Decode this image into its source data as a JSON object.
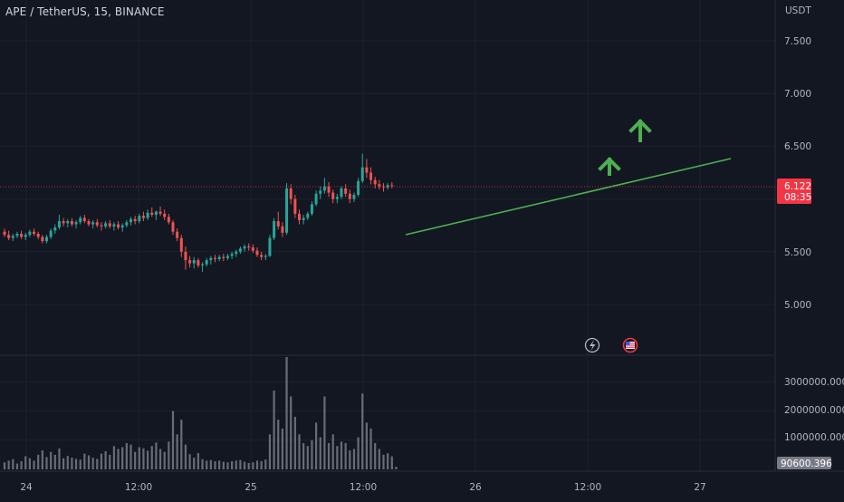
{
  "header": {
    "title": "APE / TetherUS, 15, BINANCE"
  },
  "price_axis": {
    "currency": "USDT",
    "ticks": [
      "7.500",
      "7.000",
      "6.500",
      "5.500",
      "5.000"
    ],
    "tick_values": [
      7.5,
      7.0,
      6.5,
      5.5,
      5.0
    ]
  },
  "last_price": {
    "value": "6.122",
    "countdown": "08:35",
    "color": "#f23645"
  },
  "volume_axis": {
    "ticks": [
      "3000000.000",
      "2000000.000",
      "1000000.000"
    ],
    "tick_values": [
      3000000,
      2000000,
      1000000
    ],
    "last_volume": "90600.396"
  },
  "time_axis": {
    "labels": [
      "24",
      "12:00",
      "25",
      "12:00",
      "26",
      "12:00",
      "27"
    ]
  },
  "colors": {
    "background": "#131722",
    "grid": "#1e222d",
    "up": "#26a69a",
    "down": "#ef5350",
    "trendline": "#4caf50",
    "arrow": "#4caf50",
    "volume_bar": "#787b86"
  },
  "icons": {
    "event_lightning": "lightning-icon",
    "event_flag": "us-flag-icon"
  },
  "chart_data": {
    "type": "candlestick",
    "series": [
      {
        "name": "APE / TetherUS",
        "values": [
          [
            5.69,
            5.72,
            5.64,
            5.66
          ],
          [
            5.66,
            5.7,
            5.61,
            5.63
          ],
          [
            5.63,
            5.67,
            5.6,
            5.65
          ],
          [
            5.65,
            5.69,
            5.63,
            5.67
          ],
          [
            5.67,
            5.7,
            5.62,
            5.64
          ],
          [
            5.64,
            5.68,
            5.61,
            5.66
          ],
          [
            5.66,
            5.71,
            5.64,
            5.69
          ],
          [
            5.69,
            5.72,
            5.65,
            5.67
          ],
          [
            5.67,
            5.69,
            5.62,
            5.64
          ],
          [
            5.64,
            5.66,
            5.58,
            5.6
          ],
          [
            5.6,
            5.66,
            5.58,
            5.64
          ],
          [
            5.64,
            5.72,
            5.62,
            5.7
          ],
          [
            5.7,
            5.76,
            5.67,
            5.73
          ],
          [
            5.73,
            5.85,
            5.71,
            5.79
          ],
          [
            5.79,
            5.82,
            5.74,
            5.77
          ],
          [
            5.77,
            5.81,
            5.73,
            5.79
          ],
          [
            5.79,
            5.82,
            5.74,
            5.76
          ],
          [
            5.76,
            5.8,
            5.72,
            5.78
          ],
          [
            5.78,
            5.84,
            5.76,
            5.82
          ],
          [
            5.82,
            5.85,
            5.77,
            5.79
          ],
          [
            5.79,
            5.81,
            5.74,
            5.76
          ],
          [
            5.76,
            5.8,
            5.72,
            5.78
          ],
          [
            5.78,
            5.81,
            5.73,
            5.75
          ],
          [
            5.75,
            5.78,
            5.7,
            5.74
          ],
          [
            5.74,
            5.79,
            5.72,
            5.77
          ],
          [
            5.77,
            5.8,
            5.72,
            5.74
          ],
          [
            5.74,
            5.78,
            5.7,
            5.76
          ],
          [
            5.76,
            5.79,
            5.71,
            5.73
          ],
          [
            5.73,
            5.77,
            5.69,
            5.75
          ],
          [
            5.75,
            5.8,
            5.73,
            5.78
          ],
          [
            5.78,
            5.83,
            5.75,
            5.81
          ],
          [
            5.81,
            5.84,
            5.76,
            5.79
          ],
          [
            5.79,
            5.86,
            5.77,
            5.84
          ],
          [
            5.84,
            5.88,
            5.79,
            5.82
          ],
          [
            5.82,
            5.9,
            5.8,
            5.87
          ],
          [
            5.87,
            5.92,
            5.83,
            5.85
          ],
          [
            5.85,
            5.89,
            5.8,
            5.88
          ],
          [
            5.88,
            5.93,
            5.84,
            5.86
          ],
          [
            5.86,
            5.9,
            5.8,
            5.83
          ],
          [
            5.83,
            5.86,
            5.76,
            5.78
          ],
          [
            5.78,
            5.8,
            5.66,
            5.69
          ],
          [
            5.69,
            5.72,
            5.6,
            5.63
          ],
          [
            5.63,
            5.66,
            5.45,
            5.5
          ],
          [
            5.5,
            5.55,
            5.33,
            5.42
          ],
          [
            5.42,
            5.46,
            5.35,
            5.39
          ],
          [
            5.39,
            5.45,
            5.34,
            5.42
          ],
          [
            5.42,
            5.44,
            5.35,
            5.37
          ],
          [
            5.37,
            5.4,
            5.31,
            5.38
          ],
          [
            5.38,
            5.44,
            5.36,
            5.42
          ],
          [
            5.42,
            5.46,
            5.38,
            5.44
          ],
          [
            5.44,
            5.47,
            5.4,
            5.43
          ],
          [
            5.43,
            5.47,
            5.41,
            5.45
          ],
          [
            5.45,
            5.48,
            5.41,
            5.44
          ],
          [
            5.44,
            5.48,
            5.42,
            5.46
          ],
          [
            5.46,
            5.5,
            5.43,
            5.48
          ],
          [
            5.48,
            5.52,
            5.45,
            5.5
          ],
          [
            5.5,
            5.55,
            5.48,
            5.53
          ],
          [
            5.53,
            5.57,
            5.5,
            5.55
          ],
          [
            5.55,
            5.58,
            5.51,
            5.54
          ],
          [
            5.54,
            5.57,
            5.49,
            5.51
          ],
          [
            5.51,
            5.54,
            5.45,
            5.47
          ],
          [
            5.47,
            5.5,
            5.42,
            5.45
          ],
          [
            5.45,
            5.48,
            5.42,
            5.46
          ],
          [
            5.46,
            5.66,
            5.45,
            5.63
          ],
          [
            5.63,
            5.82,
            5.61,
            5.79
          ],
          [
            5.79,
            5.88,
            5.71,
            5.74
          ],
          [
            5.74,
            5.78,
            5.64,
            5.68
          ],
          [
            5.68,
            6.15,
            5.66,
            6.1
          ],
          [
            6.1,
            6.14,
            5.95,
            6.0
          ],
          [
            6.0,
            6.04,
            5.82,
            5.86
          ],
          [
            5.86,
            5.9,
            5.76,
            5.8
          ],
          [
            5.8,
            5.85,
            5.76,
            5.82
          ],
          [
            5.82,
            5.88,
            5.8,
            5.86
          ],
          [
            5.86,
            5.98,
            5.84,
            5.95
          ],
          [
            5.95,
            6.08,
            5.93,
            6.05
          ],
          [
            6.05,
            6.12,
            6.0,
            6.08
          ],
          [
            6.08,
            6.2,
            6.05,
            6.12
          ],
          [
            6.12,
            6.16,
            6.02,
            6.06
          ],
          [
            6.06,
            6.09,
            5.96,
            6.0
          ],
          [
            6.0,
            6.05,
            5.96,
            6.02
          ],
          [
            6.02,
            6.12,
            6.0,
            6.1
          ],
          [
            6.1,
            6.14,
            6.02,
            6.05
          ],
          [
            6.05,
            6.09,
            5.96,
            6.0
          ],
          [
            6.0,
            6.06,
            5.97,
            6.04
          ],
          [
            6.04,
            6.2,
            6.02,
            6.17
          ],
          [
            6.17,
            6.43,
            6.15,
            6.3
          ],
          [
            6.3,
            6.38,
            6.2,
            6.25
          ],
          [
            6.25,
            6.3,
            6.14,
            6.18
          ],
          [
            6.18,
            6.21,
            6.1,
            6.14
          ],
          [
            6.14,
            6.18,
            6.09,
            6.12
          ],
          [
            6.12,
            6.15,
            6.07,
            6.11
          ],
          [
            6.11,
            6.15,
            6.09,
            6.13
          ],
          [
            6.13,
            6.16,
            6.1,
            6.122
          ]
        ]
      }
    ],
    "volumes": [
      240000,
      300000,
      350000,
      200000,
      280000,
      450000,
      380000,
      300000,
      500000,
      650000,
      420000,
      600000,
      500000,
      720000,
      380000,
      460000,
      400000,
      360000,
      330000,
      540000,
      480000,
      400000,
      360000,
      540000,
      620000,
      500000,
      800000,
      700000,
      760000,
      900000,
      850000,
      600000,
      760000,
      720000,
      640000,
      800000,
      920000,
      700000,
      600000,
      950000,
      2000000,
      1200000,
      1700000,
      850000,
      520000,
      400000,
      560000,
      350000,
      300000,
      320000,
      280000,
      300000,
      260000,
      240000,
      280000,
      300000,
      320000,
      260000,
      220000,
      240000,
      300000,
      280000,
      340000,
      1200000,
      2700000,
      1700000,
      1400000,
      3850000,
      2500000,
      1800000,
      1200000,
      900000,
      800000,
      1000000,
      1600000,
      1100000,
      2500000,
      900000,
      1200000,
      800000,
      950000,
      900000,
      650000,
      700000,
      1100000,
      2600000,
      1600000,
      1400000,
      900000,
      700000,
      500000,
      550000,
      450000,
      90600
    ],
    "ylim": [
      4.8,
      7.7
    ],
    "volume_ylim": [
      0,
      3850000
    ],
    "x_labels": [
      "24",
      "12:00",
      "25",
      "12:00",
      "26",
      "12:00",
      "27"
    ],
    "grid": true
  }
}
